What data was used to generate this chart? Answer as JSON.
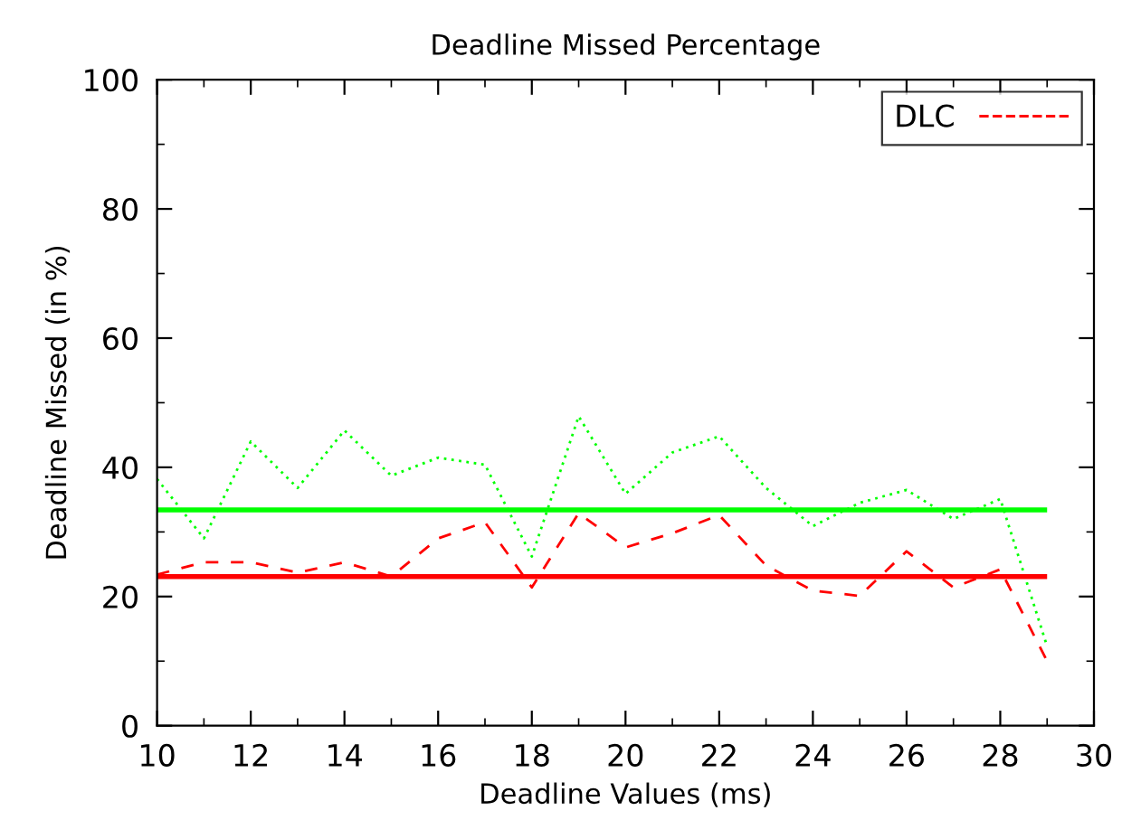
{
  "chart_data": {
    "type": "line",
    "title": "Deadline Missed Percentage",
    "xlabel": "Deadline Values (ms)",
    "ylabel": "Deadline Missed (in %)",
    "x": [
      10,
      11,
      12,
      13,
      14,
      15,
      16,
      17,
      18,
      19,
      20,
      21,
      22,
      23,
      24,
      25,
      26,
      27,
      28,
      29
    ],
    "series": [
      {
        "name": "DLC",
        "color": "#ff0000",
        "line_style": "dashed",
        "values": [
          23.4,
          25.3,
          25.3,
          23.7,
          25.3,
          23.1,
          29,
          31.5,
          21.4,
          32.9,
          27.6,
          29.8,
          32.6,
          24.8,
          20.9,
          20.1,
          27,
          21.4,
          24.2,
          10
        ]
      },
      {
        "color": "#00ff00",
        "line_style": "dotted",
        "values": [
          38.2,
          29,
          44,
          36.8,
          45.7,
          38.7,
          41.5,
          40.4,
          26.2,
          47.9,
          35.9,
          42.3,
          44.8,
          36.8,
          30.9,
          34.5,
          36.5,
          32,
          35.1,
          12.3
        ]
      }
    ],
    "ref_lines": [
      {
        "axis": "y",
        "value": 33.4,
        "color": "#00ff00"
      },
      {
        "axis": "y",
        "value": 23.1,
        "color": "#ff0000"
      }
    ],
    "xlim": [
      10,
      30
    ],
    "xticks": [
      10,
      12,
      14,
      16,
      18,
      20,
      22,
      24,
      26,
      28,
      30
    ],
    "ylim": [
      0,
      100
    ],
    "yticks": [
      0,
      20,
      40,
      60,
      80,
      100
    ],
    "grid": false,
    "legend": "top right",
    "marker": "none"
  }
}
